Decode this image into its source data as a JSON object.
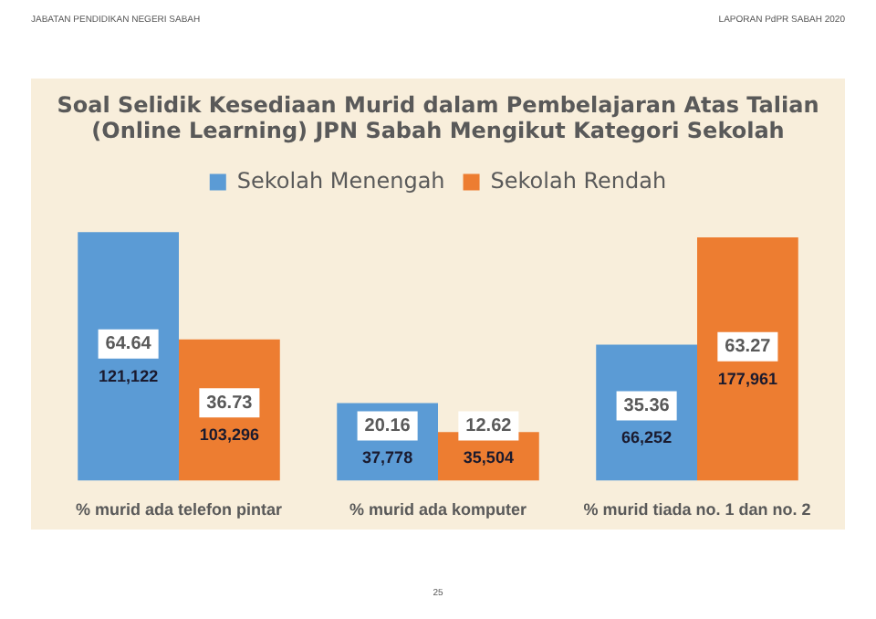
{
  "chart_data": {
    "type": "bar",
    "title": [
      "Soal Selidik Kesediaan Murid dalam Pembelajaran Atas Talian",
      "(Online Learning) JPN Sabah Mengikut Kategori Sekolah"
    ],
    "categories": [
      "% murid ada telefon pintar",
      "% murid ada komputer",
      "% murid tiada no. 1 dan no. 2"
    ],
    "series": [
      {
        "name": "Sekolah Menengah",
        "color": "#5b9bd5",
        "values": [
          64.64,
          20.16,
          35.36
        ]
      },
      {
        "name": "Sekolah Rendah",
        "color": "#ed7d31",
        "values": [
          36.73,
          12.62,
          63.27
        ]
      }
    ],
    "data_labels": true,
    "legend": "top",
    "annotations": [
      "JABATAN PENDIDIKAN NEGERI SABAH",
      "LAPORAN PdPR SABAH 2020",
      "25",
      "121,122",
      "103,296",
      "37,778",
      "35,504",
      "66,252",
      "177,961"
    ]
  }
}
